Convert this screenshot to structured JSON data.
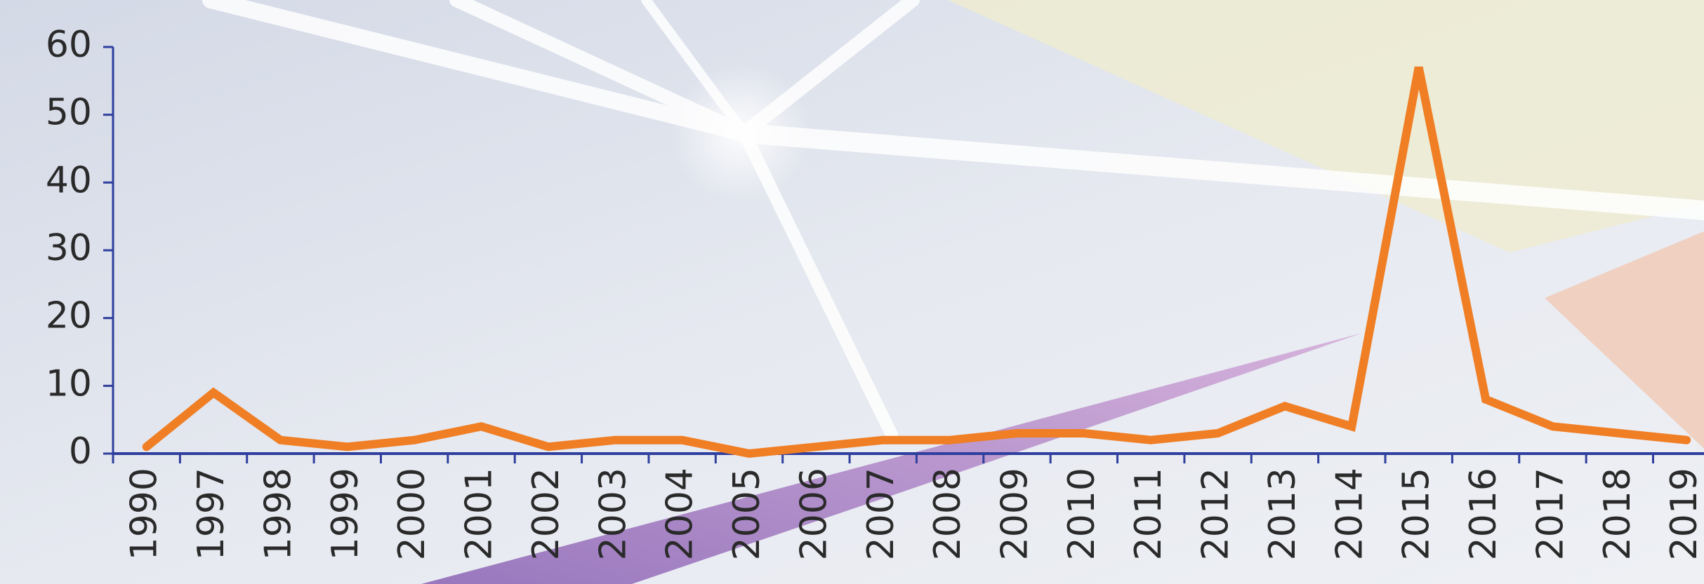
{
  "chart_data": {
    "type": "line",
    "categories": [
      "1990",
      "1997",
      "1998",
      "1999",
      "2000",
      "2001",
      "2002",
      "2003",
      "2004",
      "2005",
      "2006",
      "2007",
      "2008",
      "2009",
      "2010",
      "2011",
      "2012",
      "2013",
      "2014",
      "2015",
      "2016",
      "2017",
      "2018",
      "2019"
    ],
    "values": [
      1,
      9,
      2,
      1,
      2,
      4,
      1,
      2,
      2,
      0,
      1,
      2,
      2,
      3,
      3,
      2,
      3,
      7,
      4,
      57,
      8,
      4,
      3,
      2
    ],
    "color": "#f07e24",
    "ylim": [
      0,
      60
    ],
    "yticks": [
      0,
      10,
      20,
      30,
      40,
      50,
      60
    ]
  }
}
